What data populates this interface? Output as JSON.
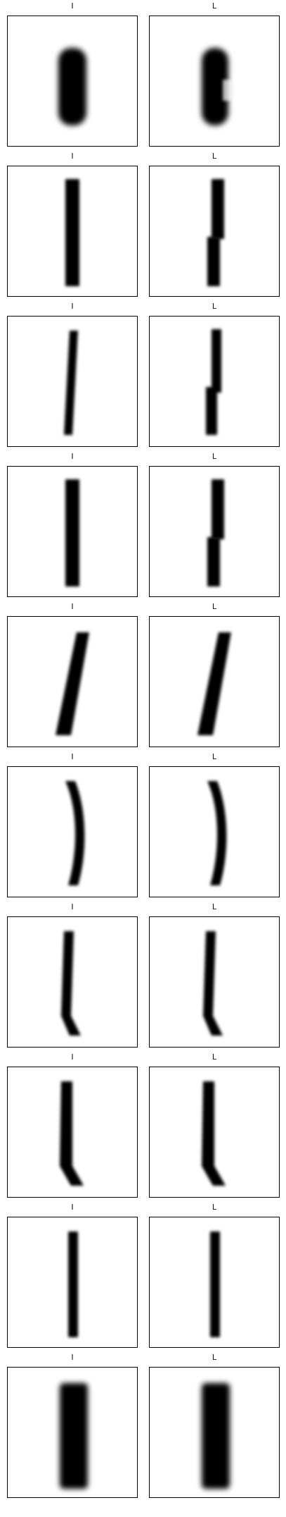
{
  "grid": {
    "columns": [
      "I",
      "L"
    ],
    "rows": [
      {
        "left": {
          "label": "I",
          "shape": "blob"
        },
        "right": {
          "label": "L",
          "shape": "blob-notch"
        }
      },
      {
        "left": {
          "label": "I",
          "shape": "bar"
        },
        "right": {
          "label": "L",
          "shape": "bar-step"
        }
      },
      {
        "left": {
          "label": "I",
          "shape": "thin-slant"
        },
        "right": {
          "label": "L",
          "shape": "thin-step"
        }
      },
      {
        "left": {
          "label": "I",
          "shape": "bar"
        },
        "right": {
          "label": "L",
          "shape": "bar-step"
        }
      },
      {
        "left": {
          "label": "I",
          "shape": "slant"
        },
        "right": {
          "label": "L",
          "shape": "slant"
        }
      },
      {
        "left": {
          "label": "I",
          "shape": "curve"
        },
        "right": {
          "label": "L",
          "shape": "curve"
        }
      },
      {
        "left": {
          "label": "I",
          "shape": "bracket"
        },
        "right": {
          "label": "L",
          "shape": "bracket"
        }
      },
      {
        "left": {
          "label": "I",
          "shape": "hook"
        },
        "right": {
          "label": "L",
          "shape": "hook"
        }
      },
      {
        "left": {
          "label": "I",
          "shape": "thin"
        },
        "right": {
          "label": "L",
          "shape": "thin"
        }
      },
      {
        "left": {
          "label": "I",
          "shape": "wide"
        },
        "right": {
          "label": "L",
          "shape": "wide"
        }
      }
    ]
  }
}
